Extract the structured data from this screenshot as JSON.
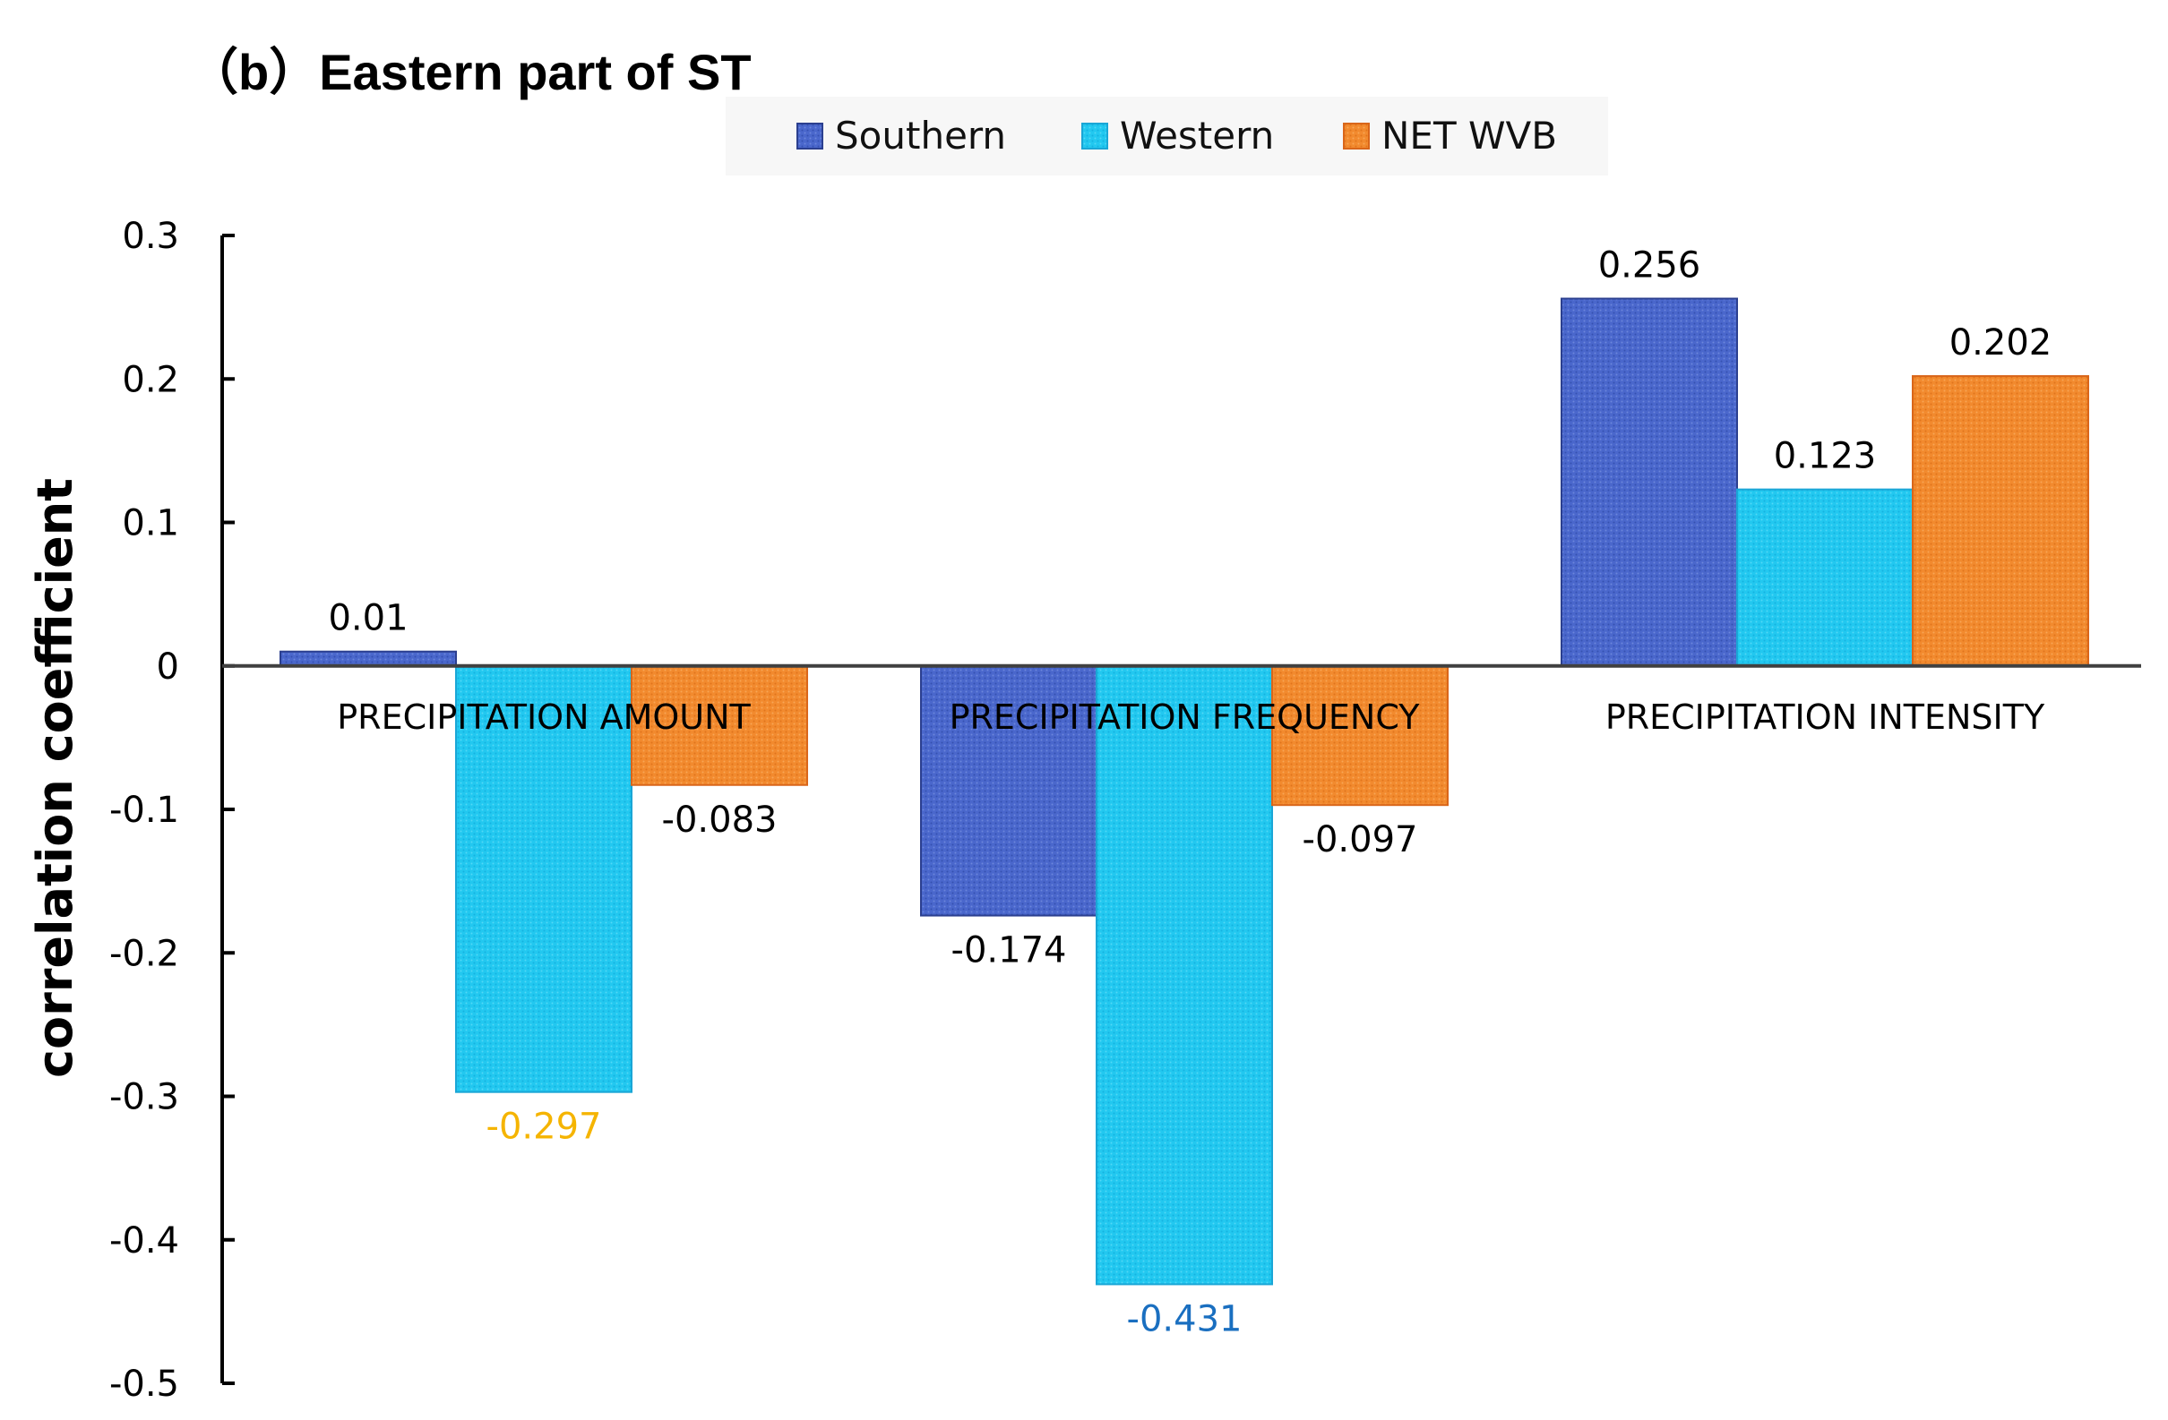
{
  "chart_data": {
    "type": "bar",
    "title": "（b）Eastern part of ST",
    "xlabel": "",
    "ylabel": "correlation coefficient",
    "ylim": [
      -0.5,
      0.3
    ],
    "yticks": [
      0.3,
      0.2,
      0.1,
      0,
      -0.1,
      -0.2,
      -0.3,
      -0.4,
      -0.5
    ],
    "ytick_labels": [
      "0.3",
      "0.2",
      "0.1",
      "0",
      "-0.1",
      "-0.2",
      "-0.3",
      "-0.4",
      "-0.5"
    ],
    "categories": [
      "PRECIPITATION AMOUNT",
      "PRECIPITATION FREQUENCY",
      "PRECIPITATION INTENSITY"
    ],
    "legend_position": "top",
    "grid": false,
    "series": [
      {
        "name": "Southern",
        "color": "#4a67cc",
        "values": [
          0.01,
          -0.174,
          0.256
        ],
        "labels": [
          "0.01",
          "-0.174",
          "0.256"
        ],
        "label_colors": [
          "#000000",
          "#000000",
          "#000000"
        ]
      },
      {
        "name": "Western",
        "color": "#22c8f0",
        "values": [
          -0.297,
          -0.431,
          0.123
        ],
        "labels": [
          "-0.297",
          "-0.431",
          "0.123"
        ],
        "label_colors": [
          "#f5b400",
          "#1a6fc0",
          "#000000"
        ]
      },
      {
        "name": "NET WVB",
        "color": "#f28a2e",
        "values": [
          -0.083,
          -0.097,
          0.202
        ],
        "labels": [
          "-0.083",
          "-0.097",
          "0.202"
        ],
        "label_colors": [
          "#000000",
          "#000000",
          "#000000"
        ]
      }
    ]
  },
  "colors": {
    "southern_border": "#2b3f8f",
    "western_border": "#1aa6d6",
    "net_border": "#d9661a",
    "legend_bg": "#f7f7f7"
  }
}
